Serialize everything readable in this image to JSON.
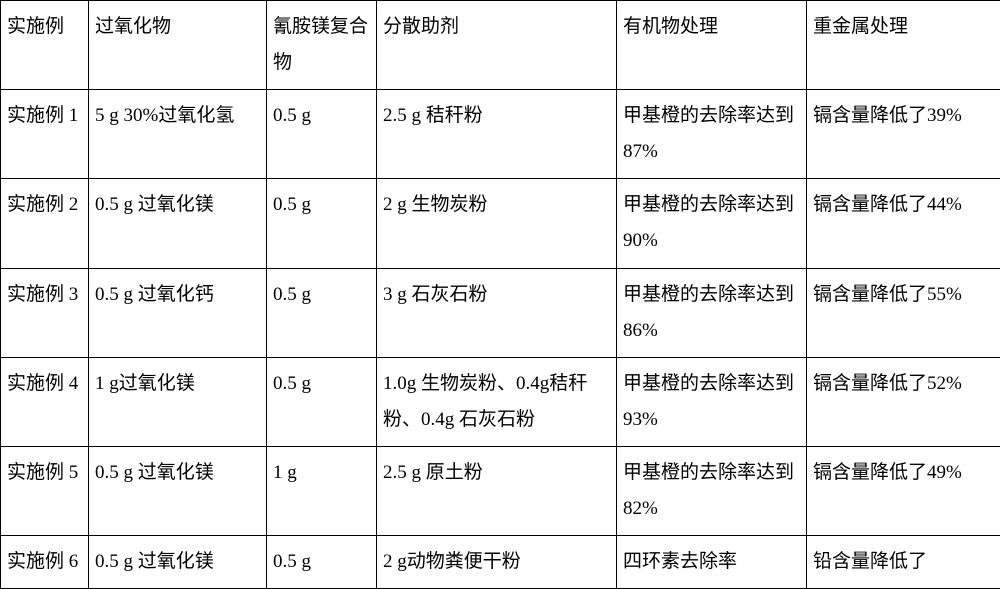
{
  "table": {
    "headers": {
      "example": "实施例",
      "peroxide": "过氧化物",
      "compound": "氰胺镁复合物",
      "dispersant": "分散助剂",
      "organic": "有机物处理",
      "metal": "重金属处理"
    },
    "rows": [
      {
        "example": "实施例 1",
        "peroxide": "5 g 30%过氧化氢",
        "compound": "0.5 g",
        "dispersant": "2.5 g 秸秆粉",
        "organic": "甲基橙的去除率达到 87%",
        "metal": "镉含量降低了39%"
      },
      {
        "example": "实施例 2",
        "peroxide": "0.5 g 过氧化镁",
        "compound": "0.5 g",
        "dispersant": "2 g 生物炭粉",
        "organic": "甲基橙的去除率达到 90%",
        "metal": "镉含量降低了44%"
      },
      {
        "example": "实施例 3",
        "peroxide": "0.5 g 过氧化钙",
        "compound": "0.5 g",
        "dispersant": "3 g 石灰石粉",
        "organic": "甲基橙的去除率达到 86%",
        "metal": "镉含量降低了55%"
      },
      {
        "example": "实施例 4",
        "peroxide": "1 g过氧化镁",
        "compound": "0.5 g",
        "dispersant": "1.0g 生物炭粉、0.4g秸秆粉、0.4g 石灰石粉",
        "organic": "甲基橙的去除率达到 93%",
        "metal": "镉含量降低了52%"
      },
      {
        "example": "实施例 5",
        "peroxide": "0.5 g 过氧化镁",
        "compound": "1 g",
        "dispersant": "2.5 g 原土粉",
        "organic": "甲基橙的去除率达到 82%",
        "metal": "镉含量降低了49%"
      },
      {
        "example": "实施例 6",
        "peroxide": "0.5 g 过氧化镁",
        "compound": "0.5 g",
        "dispersant": "2 g动物粪便干粉",
        "organic": "四环素去除率",
        "metal": "铅含量降低了"
      }
    ]
  }
}
